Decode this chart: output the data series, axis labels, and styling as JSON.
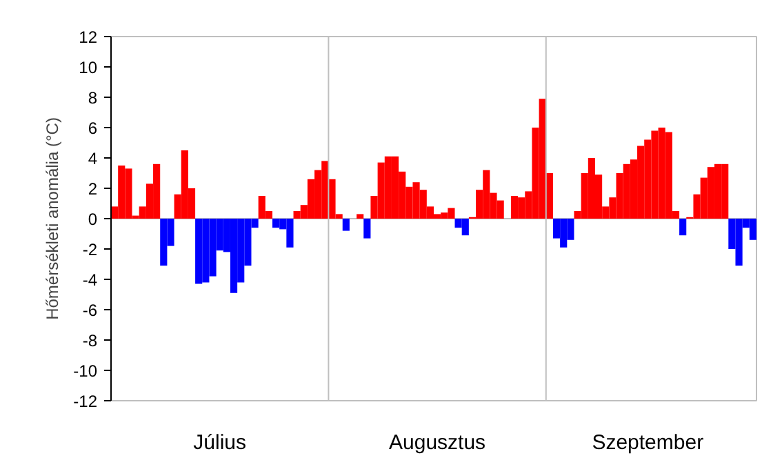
{
  "chart_data": {
    "type": "bar",
    "ylabel": "Hőmérsékleti anomália (°C)",
    "values": [
      0.8,
      3.5,
      3.3,
      0.2,
      0.8,
      2.3,
      3.6,
      -3.1,
      -1.8,
      1.6,
      4.5,
      2.0,
      -4.3,
      -4.2,
      -3.8,
      -2.1,
      -2.2,
      -4.9,
      -4.2,
      -3.1,
      -0.6,
      1.5,
      0.5,
      -0.6,
      -0.7,
      -1.9,
      0.5,
      0.9,
      2.6,
      3.2,
      3.8,
      2.6,
      0.3,
      -0.8,
      null,
      0.3,
      -1.3,
      1.5,
      3.7,
      4.1,
      4.1,
      3.1,
      2.1,
      2.4,
      1.9,
      0.8,
      0.3,
      0.4,
      0.7,
      -0.6,
      -1.1,
      0.1,
      1.9,
      3.2,
      1.7,
      1.2,
      null,
      1.5,
      1.4,
      1.8,
      6.0,
      7.9,
      3.0,
      -1.3,
      -1.9,
      -1.4,
      0.5,
      3.0,
      4.0,
      2.9,
      0.8,
      1.4,
      3.0,
      3.6,
      3.9,
      4.8,
      5.2,
      5.8,
      6.0,
      5.7,
      0.5,
      -1.1,
      0.1,
      1.6,
      2.7,
      3.4,
      3.6,
      3.6,
      -2.0,
      -3.1,
      -0.6,
      -1.4
    ],
    "colors": [
      "#ff0000",
      "#ff0000",
      "#ff0000",
      "#ff0000",
      "#ff0000",
      "#ff0000",
      "#ff0000",
      "#0000ff",
      "#0000ff",
      "#ff0000",
      "#ff0000",
      "#ff0000",
      "#0000ff",
      "#0000ff",
      "#0000ff",
      "#0000ff",
      "#0000ff",
      "#0000ff",
      "#0000ff",
      "#0000ff",
      "#0000ff",
      "#ff0000",
      "#ff0000",
      "#0000ff",
      "#0000ff",
      "#0000ff",
      "#ff0000",
      "#ff0000",
      "#ff0000",
      "#ff0000",
      "#ff0000",
      "#ff0000",
      "#ff0000",
      "#0000ff",
      "#ff0000",
      "#ff0000",
      "#0000ff",
      "#ff0000",
      "#ff0000",
      "#ff0000",
      "#ff0000",
      "#ff0000",
      "#ff0000",
      "#ff0000",
      "#ff0000",
      "#ff0000",
      "#ff0000",
      "#ff0000",
      "#ff0000",
      "#0000ff",
      "#0000ff",
      "#ff0000",
      "#ff0000",
      "#ff0000",
      "#ff0000",
      "#ff0000",
      "#ff0000",
      "#ff0000",
      "#ff0000",
      "#ff0000",
      "#ff0000",
      "#ff0000",
      "#ff0000",
      "#0000ff",
      "#0000ff",
      "#0000ff",
      "#ff0000",
      "#ff0000",
      "#ff0000",
      "#ff0000",
      "#ff0000",
      "#ff0000",
      "#ff0000",
      "#ff0000",
      "#ff0000",
      "#ff0000",
      "#ff0000",
      "#ff0000",
      "#ff0000",
      "#ff0000",
      "#ff0000",
      "#0000ff",
      "#ff0000",
      "#ff0000",
      "#ff0000",
      "#ff0000",
      "#ff0000",
      "#ff0000",
      "#0000ff",
      "#0000ff",
      "#0000ff",
      "#0000ff"
    ],
    "categories": [
      null,
      null,
      null,
      null,
      null,
      null,
      null,
      null,
      null,
      null,
      null,
      null,
      null,
      null,
      null,
      "Július",
      null,
      null,
      null,
      null,
      null,
      null,
      null,
      null,
      null,
      null,
      null,
      null,
      null,
      null,
      null,
      null,
      null,
      null,
      null,
      null,
      null,
      null,
      null,
      null,
      null,
      null,
      null,
      null,
      null,
      null,
      "Augusztus",
      null,
      null,
      null,
      null,
      null,
      null,
      null,
      null,
      null,
      null,
      null,
      null,
      null,
      null,
      null,
      null,
      null,
      null,
      null,
      null,
      null,
      null,
      null,
      null,
      null,
      null,
      null,
      null,
      null,
      "Szeptember",
      null,
      null,
      null,
      null,
      null,
      null,
      null,
      null,
      null,
      null,
      null,
      null,
      null,
      null,
      null
    ],
    "ylim": [
      -12,
      12
    ],
    "yticks": [
      -12,
      -10,
      -8,
      -6,
      -4,
      -2,
      0,
      2,
      4,
      6,
      8,
      10,
      12
    ],
    "ref_lines": [
      {
        "axis": "y",
        "value": 0,
        "color": "#bfbfbf"
      }
    ],
    "grid": false
  }
}
